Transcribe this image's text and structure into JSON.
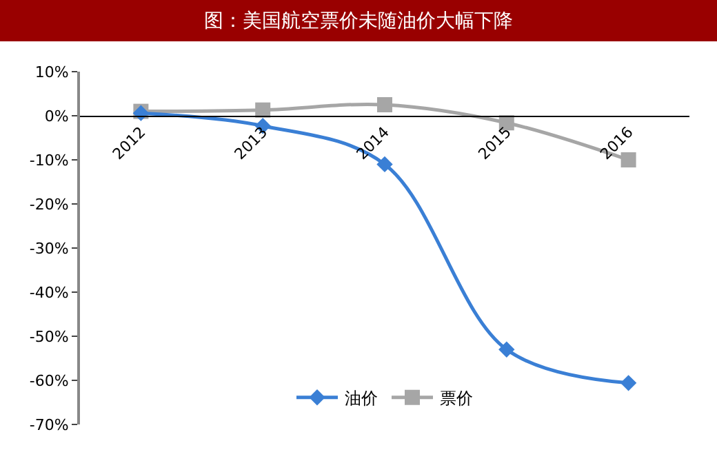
{
  "chart_data": {
    "type": "line",
    "title": "图：美国航空票价未随油价大幅下降",
    "categories": [
      "2012",
      "2013",
      "2014",
      "2015",
      "2016"
    ],
    "series": [
      {
        "name": "油价",
        "color": "#3a7fd5",
        "marker": "diamond",
        "values": [
          0.6,
          -2.3,
          -11,
          -53,
          -60.6
        ]
      },
      {
        "name": "票价",
        "color": "#a6a6a6",
        "marker": "square",
        "values": [
          1,
          1.3,
          2.5,
          -1.6,
          -10
        ]
      }
    ],
    "ylim": [
      -70,
      10
    ],
    "yticks": [
      {
        "value": -70,
        "label": "-70%"
      },
      {
        "value": -60,
        "label": "-60%"
      },
      {
        "value": -50,
        "label": "-50%"
      },
      {
        "value": -40,
        "label": "-40%"
      },
      {
        "value": -30,
        "label": "-30%"
      },
      {
        "value": -20,
        "label": "-20%"
      },
      {
        "value": -10,
        "label": "-10%"
      },
      {
        "value": 0,
        "label": "0%"
      },
      {
        "value": 10,
        "label": "10%"
      }
    ],
    "legend": "bottom"
  }
}
